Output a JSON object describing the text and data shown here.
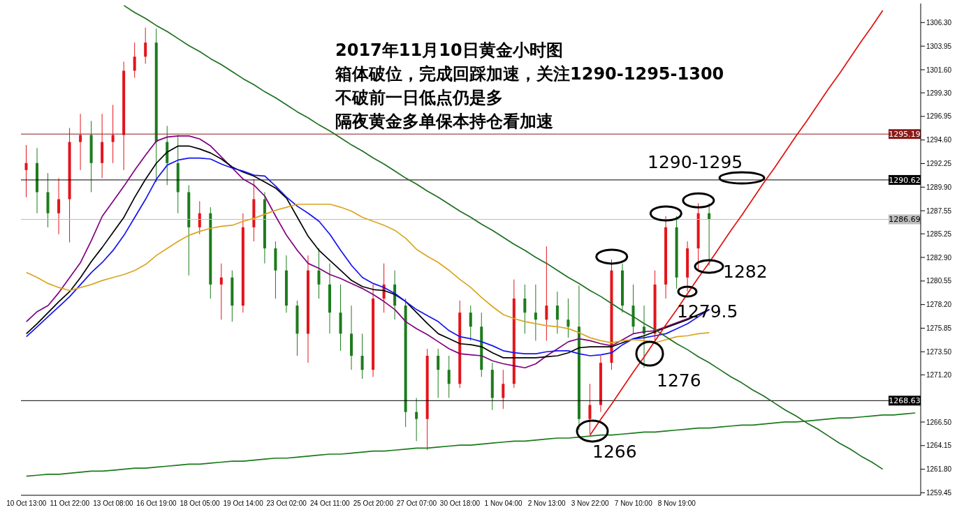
{
  "chart_data": {
    "type": "candlestick",
    "title": "2017年11月10日黄金小时图",
    "annotations": [
      "箱体破位，完成回踩加速，关注1290-1295-1300",
      "不破前一日低点仍是多",
      "隔夜黄金多单保本持仓看加速",
      "1290-1295",
      "1282",
      "1279.5",
      "1276",
      "1266"
    ],
    "categories": [
      "10 Oct 13:00",
      null,
      null,
      null,
      "11 Oct 22:00",
      null,
      null,
      null,
      "13 Oct 08:00",
      null,
      null,
      null,
      "16 Oct 19:00",
      null,
      null,
      null,
      "18 Oct 05:00",
      null,
      null,
      null,
      "19 Oct 14:00",
      null,
      null,
      null,
      "23 Oct 02:00",
      null,
      null,
      null,
      "24 Oct 11:00",
      null,
      null,
      null,
      "25 Oct 20:00",
      null,
      null,
      null,
      "27 Oct 07:00",
      null,
      null,
      null,
      "30 Oct 18:00",
      null,
      null,
      null,
      "1 Nov 04:00",
      null,
      null,
      null,
      "2 Nov 13:00",
      null,
      null,
      null,
      "3 Nov 22:00",
      null,
      null,
      null,
      "7 Nov 10:00",
      null,
      null,
      null,
      "8 Nov 19:00",
      null,
      null,
      null,
      null,
      null,
      null,
      null,
      null,
      null,
      null,
      null,
      null,
      null,
      null,
      null,
      null,
      null,
      null,
      null,
      null,
      null,
      null
    ],
    "ohlc": [
      [
        1291.6,
        1294.1,
        1288.9,
        1292.3
      ],
      [
        1292.3,
        1293.8,
        1287.3,
        1289.4
      ],
      [
        1289.4,
        1291.3,
        1285.9,
        1287.3
      ],
      [
        1287.3,
        1290.8,
        1285.2,
        1288.7
      ],
      [
        1288.7,
        1295.8,
        1284.4,
        1294.4
      ],
      [
        1294.4,
        1297.2,
        1291.6,
        1295.1
      ],
      [
        1295.1,
        1296.5,
        1289.4,
        1292.3
      ],
      [
        1292.3,
        1297.2,
        1290.8,
        1294.4
      ],
      [
        1294.4,
        1298.1,
        1292.3,
        1295.1
      ],
      [
        1295.1,
        1302.4,
        1291.6,
        1301.5
      ],
      [
        1301.5,
        1304.3,
        1300.8,
        1302.9
      ],
      [
        1302.9,
        1305.8,
        1302.2,
        1304.3
      ],
      [
        1304.3,
        1305.7,
        1290.4,
        1294.4
      ],
      [
        1294.4,
        1296.0,
        1290.1,
        1292.3
      ],
      [
        1292.3,
        1295.1,
        1287.3,
        1289.4
      ],
      [
        1289.4,
        1290.1,
        1281.1,
        1285.9
      ],
      [
        1285.9,
        1288.5,
        1285.2,
        1287.3
      ],
      [
        1287.3,
        1287.9,
        1278.8,
        1280.2
      ],
      [
        1280.2,
        1282.3,
        1276.7,
        1280.9
      ],
      [
        1280.9,
        1281.6,
        1276.5,
        1278.1
      ],
      [
        1278.1,
        1287.3,
        1277.4,
        1285.9
      ],
      [
        1285.9,
        1290.7,
        1284.5,
        1288.7
      ],
      [
        1288.7,
        1289.4,
        1282.3,
        1283.8
      ],
      [
        1283.8,
        1284.5,
        1278.8,
        1281.6
      ],
      [
        1281.6,
        1283.1,
        1277.4,
        1278.1
      ],
      [
        1278.1,
        1278.6,
        1273.1,
        1275.3
      ],
      [
        1275.3,
        1283.1,
        1272.4,
        1281.6
      ],
      [
        1281.6,
        1283.8,
        1278.8,
        1280.2
      ],
      [
        1280.2,
        1282.3,
        1275.3,
        1277.4
      ],
      [
        1277.4,
        1280.2,
        1273.6,
        1275.3
      ],
      [
        1275.3,
        1278.1,
        1271.7,
        1273.1
      ],
      [
        1273.1,
        1275.3,
        1270.8,
        1271.7
      ],
      [
        1271.7,
        1280.2,
        1271.0,
        1278.8
      ],
      [
        1278.8,
        1282.3,
        1277.4,
        1280.2
      ],
      [
        1280.2,
        1281.6,
        1276.7,
        1278.1
      ],
      [
        1278.1,
        1278.8,
        1266.0,
        1267.5
      ],
      [
        1267.5,
        1268.9,
        1264.6,
        1266.8
      ],
      [
        1266.8,
        1273.8,
        1263.7,
        1273.1
      ],
      [
        1273.1,
        1273.8,
        1268.9,
        1271.7
      ],
      [
        1271.7,
        1273.1,
        1268.9,
        1270.3
      ],
      [
        1270.3,
        1278.6,
        1269.9,
        1277.4
      ],
      [
        1277.4,
        1278.1,
        1274.6,
        1276.0
      ],
      [
        1276.0,
        1277.4,
        1271.0,
        1271.7
      ],
      [
        1271.7,
        1272.4,
        1267.7,
        1268.9
      ],
      [
        1268.9,
        1271.7,
        1267.8,
        1270.3
      ],
      [
        1270.3,
        1280.7,
        1269.9,
        1278.8
      ],
      [
        1278.8,
        1280.2,
        1275.3,
        1277.4
      ],
      [
        1277.4,
        1280.2,
        1274.6,
        1276.7
      ],
      [
        1276.7,
        1284.0,
        1274.6,
        1278.1
      ],
      [
        1278.1,
        1279.5,
        1275.3,
        1276.7
      ],
      [
        1276.7,
        1278.8,
        1274.9,
        1276.0
      ],
      [
        1276.0,
        1280.1,
        1265.7,
        1266.8
      ],
      [
        1266.8,
        1270.3,
        1265.3,
        1268.2
      ],
      [
        1268.2,
        1273.1,
        1267.5,
        1272.4
      ],
      [
        1272.4,
        1282.7,
        1271.7,
        1281.6
      ],
      [
        1281.6,
        1282.3,
        1277.4,
        1278.1
      ],
      [
        1278.1,
        1280.2,
        1275.3,
        1276.0
      ],
      [
        1276.0,
        1278.1,
        1271.9,
        1275.3
      ],
      [
        1275.3,
        1281.6,
        1274.6,
        1280.2
      ],
      [
        1280.2,
        1287.0,
        1278.8,
        1285.9
      ],
      [
        1285.9,
        1287.0,
        1279.8,
        1280.9
      ],
      [
        1280.9,
        1284.5,
        1279.5,
        1283.8
      ],
      [
        1283.8,
        1288.3,
        1281.7,
        1287.3
      ],
      [
        1287.3,
        1288.3,
        1282.1,
        1286.7
      ],
      null,
      null,
      null,
      null,
      null,
      null,
      null,
      null,
      null,
      null,
      null,
      null,
      null,
      null,
      null,
      null,
      null,
      null,
      null
    ],
    "colors": [
      "#e4141b",
      "#1c7c1c",
      "#1c7c1c",
      "#e4141b",
      "#e4141b",
      "#e4141b",
      "#1c7c1c",
      "#e4141b",
      "#e4141b",
      "#e4141b",
      "#e4141b",
      "#e4141b",
      "#1c7c1c",
      "#1c7c1c",
      "#1c7c1c",
      "#1c7c1c",
      "#e4141b",
      "#1c7c1c",
      "#e4141b",
      "#1c7c1c",
      "#e4141b",
      "#e4141b",
      "#1c7c1c",
      "#1c7c1c",
      "#1c7c1c",
      "#1c7c1c",
      "#e4141b",
      "#1c7c1c",
      "#1c7c1c",
      "#1c7c1c",
      "#1c7c1c",
      "#1c7c1c",
      "#e4141b",
      "#e4141b",
      "#1c7c1c",
      "#1c7c1c",
      "#1c7c1c",
      "#e4141b",
      "#1c7c1c",
      "#1c7c1c",
      "#e4141b",
      "#1c7c1c",
      "#1c7c1c",
      "#1c7c1c",
      "#e4141b",
      "#e4141b",
      "#1c7c1c",
      "#1c7c1c",
      "#e4141b",
      "#1c7c1c",
      "#1c7c1c",
      "#1c7c1c",
      "#e4141b",
      "#e4141b",
      "#e4141b",
      "#1c7c1c",
      "#1c7c1c",
      "#1c7c1c",
      "#e4141b",
      "#e4141b",
      "#1c7c1c",
      "#e4141b",
      "#e4141b",
      "#1c7c1c",
      null,
      null,
      null,
      null,
      null,
      null,
      null,
      null,
      null,
      null,
      null,
      null,
      null,
      null,
      null,
      null,
      null,
      null,
      null
    ],
    "series": [
      {
        "type": "line",
        "color": "#800080",
        "values": [
          1276.5,
          1277.5,
          1278.1,
          1279.4,
          1280.9,
          1282.4,
          1284.6,
          1287.0,
          1288.5,
          1290.0,
          1291.6,
          1293.1,
          1294.5,
          1294.9,
          1295.0,
          1295.0,
          1294.7,
          1294.0,
          1292.9,
          1291.8,
          1290.7,
          1290.1,
          1289.0,
          1287.0,
          1285.1,
          1283.6,
          1282.3,
          1281.8,
          1281.2,
          1280.8,
          1280.3,
          1279.8,
          1279.2,
          1278.5,
          1277.7,
          1276.5,
          1275.8,
          1275.2,
          1274.5,
          1273.8,
          1273.3,
          1273.2,
          1273.1,
          1272.6,
          1272.3,
          1272.1,
          1271.9,
          1272.3,
          1273.1,
          1273.8,
          1274.5,
          1274.8,
          1274.6,
          1274.3,
          1274.1,
          1274.7,
          1275.3,
          1275.5,
          1275.6,
          1276.0,
          1276.4,
          1276.8,
          1277.2,
          1277.7,
          null,
          null,
          null,
          null,
          null,
          null,
          null,
          null,
          null,
          null,
          null,
          null,
          null,
          null,
          null,
          null,
          null,
          null,
          null
        ]
      },
      {
        "type": "line",
        "color": "#000000",
        "values": [
          1275.3,
          1276.3,
          1277.4,
          1278.5,
          1279.5,
          1280.9,
          1282.5,
          1283.9,
          1285.4,
          1286.9,
          1288.9,
          1290.7,
          1292.3,
          1293.4,
          1294.0,
          1294.0,
          1293.7,
          1293.3,
          1292.7,
          1291.9,
          1291.4,
          1291.0,
          1290.4,
          1289.8,
          1288.8,
          1286.9,
          1285.0,
          1283.6,
          1282.6,
          1281.6,
          1280.6,
          1280.0,
          1279.7,
          1279.6,
          1279.2,
          1278.5,
          1277.4,
          1276.3,
          1275.3,
          1274.8,
          1274.3,
          1274.2,
          1274.0,
          1273.4,
          1272.9,
          1272.9,
          1272.9,
          1272.9,
          1273.0,
          1273.1,
          1273.4,
          1273.9,
          1274.0,
          1274.0,
          1274.0,
          1274.4,
          1274.8,
          1275.1,
          1275.5,
          1275.9,
          1276.3,
          1276.7,
          1277.2,
          1277.7,
          null,
          null,
          null,
          null,
          null,
          null,
          null,
          null,
          null,
          null,
          null,
          null,
          null,
          null,
          null,
          null,
          null,
          null,
          null
        ]
      },
      {
        "type": "line",
        "color": "#1414f0",
        "values": [
          1275.0,
          1276.0,
          1277.0,
          1278.0,
          1279.0,
          1280.2,
          1281.4,
          1282.4,
          1283.6,
          1285.1,
          1286.9,
          1288.7,
          1290.7,
          1292.1,
          1292.6,
          1292.8,
          1292.8,
          1292.7,
          1292.2,
          1291.8,
          1291.5,
          1291.1,
          1291.0,
          1290.0,
          1288.9,
          1288.0,
          1287.3,
          1286.5,
          1285.2,
          1283.6,
          1282.1,
          1280.9,
          1280.3,
          1279.9,
          1279.3,
          1278.5,
          1277.7,
          1277.1,
          1276.5,
          1275.6,
          1275.0,
          1274.8,
          1274.5,
          1274.1,
          1273.6,
          1273.4,
          1273.3,
          1273.3,
          1273.5,
          1273.6,
          1273.6,
          1273.3,
          1273.1,
          1273.2,
          1273.4,
          1274.2,
          1274.8,
          1274.9,
          1275.1,
          1275.3,
          1275.8,
          1276.3,
          1277.0,
          1277.7,
          null,
          null,
          null,
          null,
          null,
          null,
          null,
          null,
          null,
          null,
          null,
          null,
          null,
          null,
          null,
          null,
          null,
          null,
          null
        ]
      },
      {
        "type": "line",
        "color": "#daa520",
        "values": [
          1281.4,
          1280.9,
          1280.3,
          1279.9,
          1279.6,
          1279.9,
          1280.2,
          1280.6,
          1280.9,
          1281.2,
          1281.6,
          1282.2,
          1283.1,
          1283.8,
          1284.5,
          1285.1,
          1285.5,
          1285.8,
          1286.0,
          1286.1,
          1286.5,
          1286.8,
          1287.2,
          1287.6,
          1287.9,
          1288.2,
          1288.2,
          1288.2,
          1288.2,
          1287.9,
          1287.5,
          1286.9,
          1286.5,
          1286.1,
          1285.6,
          1284.8,
          1283.7,
          1283.0,
          1282.4,
          1281.6,
          1280.7,
          1279.9,
          1278.9,
          1278.0,
          1277.2,
          1276.8,
          1276.5,
          1276.3,
          1276.1,
          1276.0,
          1275.8,
          1275.4,
          1274.9,
          1274.6,
          1274.4,
          1274.6,
          1274.7,
          1274.6,
          1274.4,
          1274.7,
          1275.0,
          1275.1,
          1275.3,
          1275.4,
          null,
          null,
          null,
          null,
          null,
          null,
          null,
          null,
          null,
          null,
          null,
          null,
          null,
          null,
          null,
          null,
          null,
          null,
          null
        ]
      },
      {
        "type": "line",
        "color": "#1f6f1f",
        "values": [
          null,
          null,
          null,
          null,
          null,
          null,
          null,
          null,
          null,
          1308.0,
          1307.3,
          1306.7,
          1306.0,
          1305.4,
          1304.7,
          1304.0,
          1303.4,
          1302.7,
          1302.1,
          1301.4,
          1300.7,
          1300.1,
          1299.4,
          1298.8,
          1298.1,
          1297.4,
          1296.8,
          1296.1,
          1295.5,
          1294.8,
          1294.1,
          1293.5,
          1292.8,
          1292.2,
          1291.5,
          1290.8,
          1290.2,
          1289.5,
          1288.9,
          1288.2,
          1287.5,
          1286.9,
          1286.2,
          1285.6,
          1284.9,
          1284.2,
          1283.6,
          1282.9,
          1282.3,
          1281.6,
          1280.9,
          1280.3,
          1279.6,
          1279.0,
          1278.3,
          1277.6,
          1277.0,
          1276.3,
          1275.7,
          1275.0,
          1274.3,
          1273.7,
          1273.0,
          1272.4,
          1271.7,
          1271.0,
          1270.4,
          1269.7,
          1269.1,
          1268.4,
          1267.7,
          1267.1,
          1266.4,
          1265.8,
          1265.1,
          1264.4,
          1263.8,
          1263.1,
          1262.5,
          1261.8,
          null,
          null,
          null
        ]
      },
      {
        "type": "line",
        "color": "#1a7a1a",
        "values": [
          1261.1,
          1261.2,
          1261.3,
          1261.3,
          1261.4,
          1261.5,
          1261.6,
          1261.6,
          1261.7,
          1261.8,
          1261.9,
          1261.9,
          1262.0,
          1262.1,
          1262.2,
          1262.3,
          1262.3,
          1262.4,
          1262.5,
          1262.6,
          1262.6,
          1262.7,
          1262.8,
          1262.9,
          1262.9,
          1263.0,
          1263.1,
          1263.2,
          1263.3,
          1263.3,
          1263.4,
          1263.5,
          1263.6,
          1263.6,
          1263.7,
          1263.8,
          1263.9,
          1263.9,
          1264.0,
          1264.1,
          1264.2,
          1264.2,
          1264.3,
          1264.4,
          1264.5,
          1264.6,
          1264.6,
          1264.7,
          1264.8,
          1264.9,
          1264.9,
          1265.0,
          1265.1,
          1265.2,
          1265.2,
          1265.3,
          1265.4,
          1265.5,
          1265.5,
          1265.6,
          1265.7,
          1265.8,
          1265.9,
          1265.9,
          1266.0,
          1266.1,
          1266.2,
          1266.2,
          1266.3,
          1266.4,
          1266.5,
          1266.5,
          1266.6,
          1266.7,
          1266.8,
          1266.9,
          1266.9,
          1267.0,
          1267.1,
          1267.2,
          1267.2,
          1267.3,
          1267.4
        ]
      },
      {
        "type": "line",
        "color": "#e01010",
        "values": [
          null,
          null,
          null,
          null,
          null,
          null,
          null,
          null,
          null,
          null,
          null,
          null,
          null,
          null,
          null,
          null,
          null,
          null,
          null,
          null,
          null,
          null,
          null,
          null,
          null,
          null,
          null,
          null,
          null,
          null,
          null,
          null,
          null,
          null,
          null,
          null,
          null,
          null,
          null,
          null,
          null,
          null,
          null,
          null,
          null,
          null,
          null,
          null,
          null,
          null,
          null,
          null,
          1265.2,
          1266.8,
          1268.3,
          1269.9,
          1271.5,
          1273.0,
          1274.6,
          1276.2,
          1277.7,
          1279.3,
          1280.9,
          1282.4,
          1284.0,
          1285.6,
          1287.1,
          1288.7,
          1290.3,
          1291.8,
          1293.4,
          1295.0,
          1296.5,
          1298.1,
          1299.7,
          1301.2,
          1302.8,
          1304.4,
          1305.9,
          1307.5,
          null,
          null,
          null
        ]
      }
    ],
    "ref_lines": [
      {
        "axis": "y",
        "value": 1295.19,
        "label": "1295.19",
        "color": "#8b1a1a"
      },
      {
        "axis": "y",
        "value": 1290.62,
        "label": "1290.62",
        "color": "#000000"
      },
      {
        "axis": "y",
        "value": 1286.69,
        "label": "1286.69",
        "color": "#bdbdbd"
      },
      {
        "axis": "y",
        "value": 1268.63,
        "label": "1268.63",
        "color": "#000000"
      }
    ],
    "ylim": [
      1259.2,
      1308.2
    ],
    "yticks": [
      {
        "value": 1306.3,
        "label": "1306.30"
      },
      1303.95,
      {
        "value": 1301.6,
        "label": "1301.60"
      },
      {
        "value": 1299.3,
        "label": "1299.30"
      },
      1296.95,
      {
        "value": 1294.6,
        "label": "1294.60"
      },
      1292.25,
      {
        "value": 1289.9,
        "label": "1289.90"
      },
      1287.55,
      1285.25,
      {
        "value": 1282.9,
        "label": "1282.90"
      },
      1280.55,
      {
        "value": 1278.2,
        "label": "1278.20"
      },
      1275.85,
      {
        "value": 1273.5,
        "label": "1273.50"
      },
      {
        "value": 1271.2,
        "label": "1271.20"
      },
      {
        "value": 1266.5,
        "label": "1266.50"
      },
      1264.15,
      {
        "value": 1261.8,
        "label": "1261.80"
      },
      1259.45
    ]
  }
}
